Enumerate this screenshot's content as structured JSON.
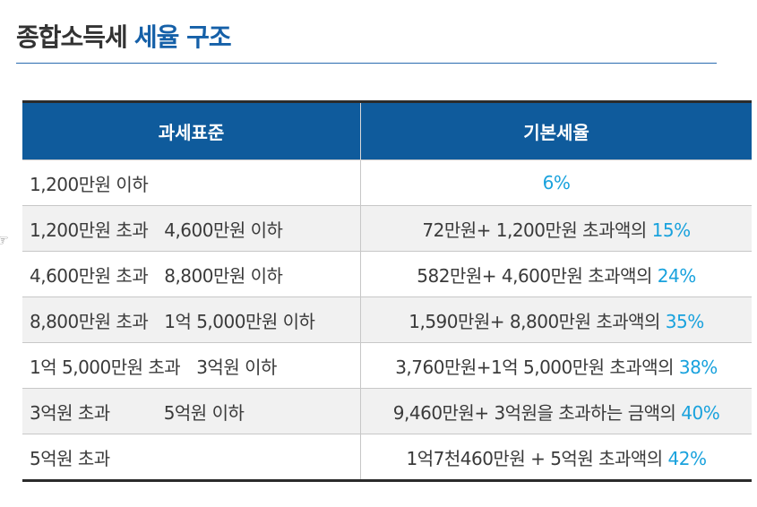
{
  "title": {
    "part1": "종합소득세",
    "part2": "세율 구조"
  },
  "table": {
    "headers": [
      "과세표준",
      "기본세율"
    ],
    "rows": [
      {
        "range_from": "1,200만원 이하",
        "range_to": "",
        "formula": "",
        "rate": "6%"
      },
      {
        "range_from": "1,200만원 초과",
        "range_to": "4,600만원 이하",
        "formula": "72만원+ 1,200만원 초과액의 ",
        "rate": "15%"
      },
      {
        "range_from": "4,600만원 초과",
        "range_to": "8,800만원 이하",
        "formula": "582만원+ 4,600만원 초과액의 ",
        "rate": "24%"
      },
      {
        "range_from": "8,800만원 초과",
        "range_to": "1억 5,000만원 이하",
        "formula": "1,590만원+ 8,800만원 초과액의 ",
        "rate": "35%"
      },
      {
        "range_from": "1억 5,000만원 초과",
        "range_to": "3억원 이하",
        "formula": "3,760만원+1억 5,000만원 초과액의 ",
        "rate": "38%"
      },
      {
        "range_from": "3억원 초과",
        "range_to": "5억원 이하",
        "formula": "9,460만원+ 3억원을 초과하는 금액의 ",
        "rate": "40%"
      },
      {
        "range_from": "5억원 초과",
        "range_to": "",
        "formula": "1억7천460만원 + 5억원 초과액의 ",
        "rate": "42%"
      }
    ]
  },
  "colors": {
    "header_bg": "#0f5b9c",
    "title_accent": "#1560a8",
    "rate_accent": "#19a2dd"
  }
}
